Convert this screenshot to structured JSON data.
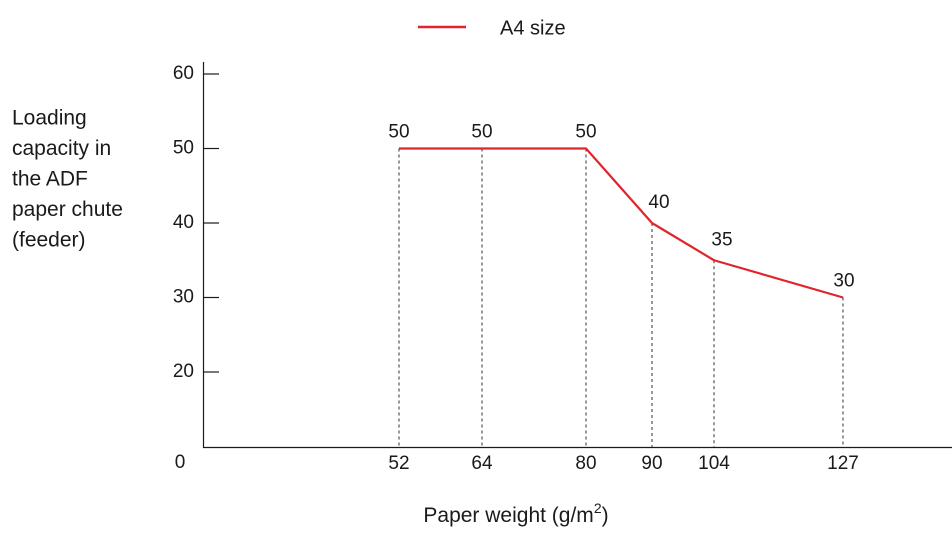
{
  "chart_data": {
    "type": "line",
    "x": [
      52,
      64,
      80,
      90,
      104,
      127
    ],
    "series": [
      {
        "name": "A4 size",
        "color": "#e0242b",
        "values": [
          50,
          50,
          50,
          40,
          35,
          30
        ]
      }
    ],
    "data_labels": [
      "50",
      "50",
      "50",
      "40",
      "35",
      "30"
    ],
    "x_tick_labels": [
      "52",
      "64",
      "80",
      "90",
      "104",
      "127"
    ],
    "y_ticks": [
      20,
      30,
      40,
      50,
      60
    ],
    "y_tick_labels": [
      "20",
      "30",
      "40",
      "50",
      "60"
    ],
    "origin_label": "0",
    "ylabel_lines": [
      "Loading",
      "capacity in",
      "the ADF",
      "paper chute",
      "(feeder)"
    ],
    "xlabel": {
      "text": "Paper weight (g/m",
      "superscript": "2",
      "suffix": ")"
    },
    "legend_placement": "top-center",
    "drop_lines": "dashed",
    "grid": false
  }
}
